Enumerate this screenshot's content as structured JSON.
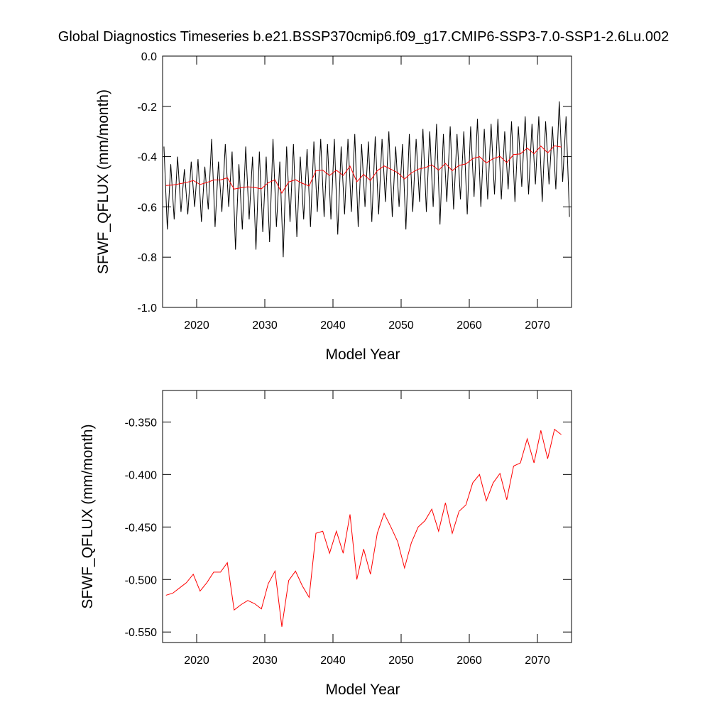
{
  "chart_data": [
    {
      "type": "line",
      "title": "Global Diagnostics Timeseries b.e21.BSSP370cmip6.f09_g17.CMIP6-SSP3-7.0-SSP1-2.6Lu.002",
      "x_label": "Model Year",
      "y_label": "SFWF_QFLUX (mm/month)",
      "xlim": [
        2015,
        2075
      ],
      "xticks": [
        2020,
        2030,
        2040,
        2050,
        2060,
        2070
      ],
      "ylim": [
        -1.0,
        0.0
      ],
      "yticks": [
        {
          "value": -1.0,
          "label": "-1.0"
        },
        -0.8,
        -0.6,
        -0.4,
        -0.2,
        {
          "value": 0.0,
          "label": "0.0"
        }
      ],
      "series": [
        {
          "name": "monthly",
          "color": "#000000",
          "x": [
            2015.2,
            2015.7,
            2016.2,
            2016.7,
            2017.2,
            2017.7,
            2018.2,
            2018.7,
            2019.2,
            2019.7,
            2020.2,
            2020.7,
            2021.2,
            2021.7,
            2022.2,
            2022.7,
            2023.2,
            2023.7,
            2024.2,
            2024.7,
            2025.2,
            2025.7,
            2026.2,
            2026.7,
            2027.2,
            2027.7,
            2028.2,
            2028.7,
            2029.2,
            2029.7,
            2030.2,
            2030.7,
            2031.2,
            2031.7,
            2032.2,
            2032.7,
            2033.2,
            2033.7,
            2034.2,
            2034.7,
            2035.2,
            2035.7,
            2036.2,
            2036.7,
            2037.2,
            2037.7,
            2038.2,
            2038.7,
            2039.2,
            2039.7,
            2040.2,
            2040.7,
            2041.2,
            2041.7,
            2042.2,
            2042.7,
            2043.2,
            2043.7,
            2044.2,
            2044.7,
            2045.2,
            2045.7,
            2046.2,
            2046.7,
            2047.2,
            2047.7,
            2048.2,
            2048.7,
            2049.2,
            2049.7,
            2050.2,
            2050.7,
            2051.2,
            2051.7,
            2052.2,
            2052.7,
            2053.2,
            2053.7,
            2054.2,
            2054.7,
            2055.2,
            2055.7,
            2056.2,
            2056.7,
            2057.2,
            2057.7,
            2058.2,
            2058.7,
            2059.2,
            2059.7,
            2060.2,
            2060.7,
            2061.2,
            2061.7,
            2062.2,
            2062.7,
            2063.2,
            2063.7,
            2064.2,
            2064.7,
            2065.2,
            2065.7,
            2066.2,
            2066.7,
            2067.2,
            2067.7,
            2068.2,
            2068.7,
            2069.2,
            2069.7,
            2070.2,
            2070.7,
            2071.2,
            2071.7,
            2072.2,
            2072.7,
            2073.2,
            2073.7,
            2074.2,
            2074.7
          ],
          "values": [
            -0.36,
            -0.69,
            -0.43,
            -0.65,
            -0.4,
            -0.62,
            -0.45,
            -0.63,
            -0.42,
            -0.6,
            -0.41,
            -0.66,
            -0.44,
            -0.61,
            -0.33,
            -0.68,
            -0.42,
            -0.62,
            -0.35,
            -0.6,
            -0.38,
            -0.77,
            -0.43,
            -0.69,
            -0.36,
            -0.65,
            -0.4,
            -0.77,
            -0.38,
            -0.7,
            -0.4,
            -0.74,
            -0.33,
            -0.68,
            -0.42,
            -0.8,
            -0.36,
            -0.66,
            -0.35,
            -0.72,
            -0.4,
            -0.65,
            -0.37,
            -0.68,
            -0.34,
            -0.62,
            -0.33,
            -0.64,
            -0.35,
            -0.65,
            -0.33,
            -0.71,
            -0.36,
            -0.63,
            -0.33,
            -0.62,
            -0.31,
            -0.68,
            -0.35,
            -0.6,
            -0.34,
            -0.66,
            -0.32,
            -0.63,
            -0.33,
            -0.58,
            -0.3,
            -0.64,
            -0.36,
            -0.6,
            -0.35,
            -0.69,
            -0.31,
            -0.62,
            -0.33,
            -0.58,
            -0.29,
            -0.62,
            -0.3,
            -0.6,
            -0.27,
            -0.67,
            -0.31,
            -0.58,
            -0.28,
            -0.61,
            -0.31,
            -0.57,
            -0.3,
            -0.63,
            -0.28,
            -0.56,
            -0.25,
            -0.6,
            -0.29,
            -0.57,
            -0.27,
            -0.55,
            -0.25,
            -0.57,
            -0.3,
            -0.53,
            -0.26,
            -0.58,
            -0.28,
            -0.52,
            -0.24,
            -0.55,
            -0.27,
            -0.51,
            -0.24,
            -0.58,
            -0.26,
            -0.51,
            -0.28,
            -0.53,
            -0.18,
            -0.5,
            -0.24,
            -0.64
          ]
        },
        {
          "name": "annual",
          "color": "#ff0000",
          "x": [
            2015.5,
            2016.5,
            2017.5,
            2018.5,
            2019.5,
            2020.5,
            2021.5,
            2022.5,
            2023.5,
            2024.5,
            2025.5,
            2026.5,
            2027.5,
            2028.5,
            2029.5,
            2030.5,
            2031.5,
            2032.5,
            2033.5,
            2034.5,
            2035.5,
            2036.5,
            2037.5,
            2038.5,
            2039.5,
            2040.5,
            2041.5,
            2042.5,
            2043.5,
            2044.5,
            2045.5,
            2046.5,
            2047.5,
            2048.5,
            2049.5,
            2050.5,
            2051.5,
            2052.5,
            2053.5,
            2054.5,
            2055.5,
            2056.5,
            2057.5,
            2058.5,
            2059.5,
            2060.5,
            2061.5,
            2062.5,
            2063.5,
            2064.5,
            2065.5,
            2066.5,
            2067.5,
            2068.5,
            2069.5,
            2070.5,
            2071.5,
            2072.5,
            2073.5
          ],
          "values": [
            -0.515,
            -0.513,
            -0.508,
            -0.503,
            -0.495,
            -0.511,
            -0.503,
            -0.493,
            -0.493,
            -0.484,
            -0.529,
            -0.524,
            -0.52,
            -0.523,
            -0.528,
            -0.504,
            -0.492,
            -0.545,
            -0.501,
            -0.492,
            -0.506,
            -0.517,
            -0.456,
            -0.454,
            -0.475,
            -0.454,
            -0.475,
            -0.438,
            -0.5,
            -0.471,
            -0.495,
            -0.456,
            -0.437,
            -0.45,
            -0.464,
            -0.489,
            -0.465,
            -0.45,
            -0.444,
            -0.433,
            -0.454,
            -0.427,
            -0.456,
            -0.435,
            -0.429,
            -0.408,
            -0.4,
            -0.425,
            -0.408,
            -0.399,
            -0.424,
            -0.392,
            -0.389,
            -0.366,
            -0.389,
            -0.358,
            -0.385,
            -0.357,
            -0.362
          ]
        }
      ]
    },
    {
      "type": "line",
      "x_label": "Model Year",
      "y_label": "SFWF_QFLUX (mm/month)",
      "xlim": [
        2015,
        2075
      ],
      "xticks": [
        2020,
        2030,
        2040,
        2050,
        2060,
        2070
      ],
      "ylim": [
        -0.56,
        -0.32
      ],
      "yticks": [
        {
          "value": -0.55,
          "label": "-0.550"
        },
        {
          "value": -0.5,
          "label": "-0.500"
        },
        {
          "value": -0.45,
          "label": "-0.450"
        },
        {
          "value": -0.4,
          "label": "-0.400"
        },
        {
          "value": -0.35,
          "label": "-0.350"
        }
      ],
      "series": [
        {
          "name": "annual",
          "color": "#ff0000",
          "x": [
            2015.5,
            2016.5,
            2017.5,
            2018.5,
            2019.5,
            2020.5,
            2021.5,
            2022.5,
            2023.5,
            2024.5,
            2025.5,
            2026.5,
            2027.5,
            2028.5,
            2029.5,
            2030.5,
            2031.5,
            2032.5,
            2033.5,
            2034.5,
            2035.5,
            2036.5,
            2037.5,
            2038.5,
            2039.5,
            2040.5,
            2041.5,
            2042.5,
            2043.5,
            2044.5,
            2045.5,
            2046.5,
            2047.5,
            2048.5,
            2049.5,
            2050.5,
            2051.5,
            2052.5,
            2053.5,
            2054.5,
            2055.5,
            2056.5,
            2057.5,
            2058.5,
            2059.5,
            2060.5,
            2061.5,
            2062.5,
            2063.5,
            2064.5,
            2065.5,
            2066.5,
            2067.5,
            2068.5,
            2069.5,
            2070.5,
            2071.5,
            2072.5,
            2073.5
          ],
          "values": [
            -0.515,
            -0.513,
            -0.508,
            -0.503,
            -0.495,
            -0.511,
            -0.503,
            -0.493,
            -0.493,
            -0.484,
            -0.529,
            -0.524,
            -0.52,
            -0.523,
            -0.528,
            -0.504,
            -0.492,
            -0.545,
            -0.501,
            -0.492,
            -0.506,
            -0.517,
            -0.456,
            -0.454,
            -0.475,
            -0.454,
            -0.475,
            -0.438,
            -0.5,
            -0.471,
            -0.495,
            -0.456,
            -0.437,
            -0.45,
            -0.464,
            -0.489,
            -0.465,
            -0.45,
            -0.444,
            -0.433,
            -0.454,
            -0.427,
            -0.456,
            -0.435,
            -0.429,
            -0.408,
            -0.4,
            -0.425,
            -0.408,
            -0.399,
            -0.424,
            -0.392,
            -0.389,
            -0.366,
            -0.389,
            -0.358,
            -0.385,
            -0.357,
            -0.362
          ]
        }
      ]
    }
  ]
}
